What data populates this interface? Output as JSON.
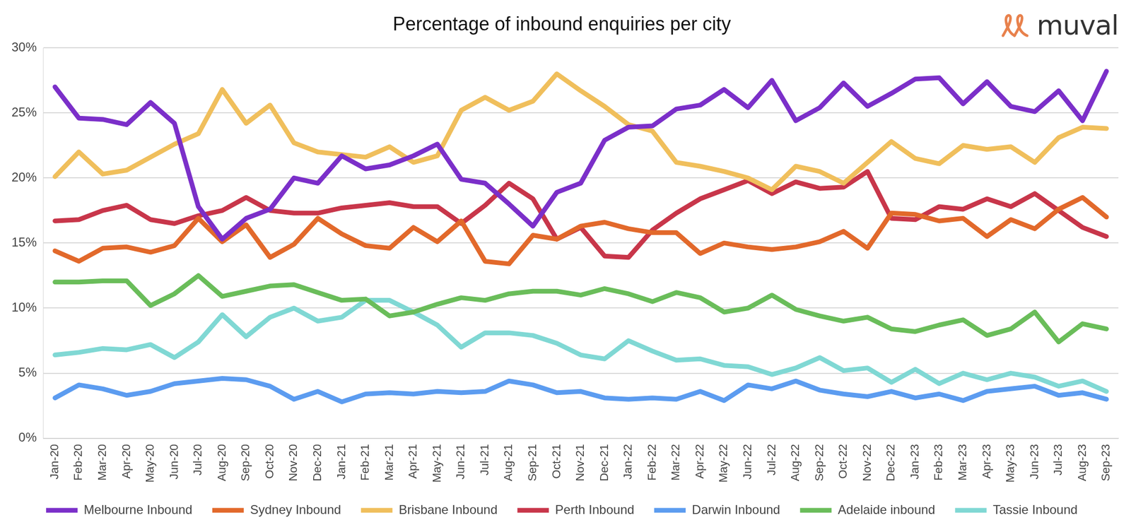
{
  "chart_data": {
    "type": "line",
    "title": "Percentage of inbound enquiries per city",
    "logo_text": "muval",
    "categories": [
      "Jan-20",
      "Feb-20",
      "Mar-20",
      "Apr-20",
      "May-20",
      "Jun-20",
      "Jul-20",
      "Aug-20",
      "Sep-20",
      "Oct-20",
      "Nov-20",
      "Dec-20",
      "Jan-21",
      "Feb-21",
      "Mar-21",
      "Apr-21",
      "May-21",
      "Jun-21",
      "Jul-21",
      "Aug-21",
      "Sep-21",
      "Oct-21",
      "Nov-21",
      "Dec-21",
      "Jan-22",
      "Feb-22",
      "Mar-22",
      "Apr-22",
      "May-22",
      "Jun-22",
      "Jul-22",
      "Aug-22",
      "Sep-22",
      "Oct-22",
      "Nov-22",
      "Dec-22",
      "Jan-23",
      "Feb-23",
      "Mar-23",
      "Apr-23",
      "May-23",
      "Jun-23",
      "Jul-23",
      "Aug-23",
      "Sep-23"
    ],
    "series": [
      {
        "name": "Melbourne Inbound",
        "color": "#7b2fc9",
        "values": [
          27.0,
          24.6,
          24.5,
          24.1,
          25.8,
          24.2,
          17.8,
          15.3,
          16.9,
          17.6,
          20.0,
          19.6,
          21.7,
          20.7,
          21.0,
          21.7,
          22.6,
          19.9,
          19.6,
          18.0,
          16.3,
          18.9,
          19.6,
          22.9,
          23.9,
          24.0,
          25.3,
          25.6,
          26.8,
          25.4,
          27.5,
          24.4,
          25.4,
          27.3,
          25.5,
          26.5,
          27.6,
          27.7,
          25.7,
          27.4,
          25.5,
          25.1,
          26.7,
          24.4,
          28.2
        ]
      },
      {
        "name": "Sydney Inbound",
        "color": "#e2692b",
        "values": [
          14.4,
          13.6,
          14.6,
          14.7,
          14.3,
          14.8,
          16.9,
          15.1,
          16.4,
          13.9,
          14.9,
          16.9,
          15.7,
          14.8,
          14.6,
          16.2,
          15.1,
          16.7,
          13.6,
          13.4,
          15.6,
          15.3,
          16.3,
          16.6,
          16.1,
          15.8,
          15.8,
          14.2,
          15.0,
          14.7,
          14.5,
          14.7,
          15.1,
          15.9,
          14.6,
          17.3,
          17.2,
          16.7,
          16.9,
          15.5,
          16.8,
          16.1,
          17.6,
          18.5,
          17.0
        ]
      },
      {
        "name": "Brisbane Inbound",
        "color": "#f0bf5c",
        "values": [
          20.1,
          22.0,
          20.3,
          20.6,
          21.6,
          22.6,
          23.4,
          26.8,
          24.2,
          25.6,
          22.7,
          22.0,
          21.8,
          21.6,
          22.4,
          21.2,
          21.7,
          25.2,
          26.2,
          25.2,
          25.9,
          28.0,
          26.7,
          25.5,
          24.1,
          23.6,
          21.2,
          20.9,
          20.5,
          20.0,
          19.1,
          20.9,
          20.5,
          19.6,
          21.2,
          22.8,
          21.5,
          21.1,
          22.5,
          22.2,
          22.4,
          21.2,
          23.1,
          23.9,
          23.8
        ]
      },
      {
        "name": "Perth Inbound",
        "color": "#c8364a",
        "values": [
          16.7,
          16.8,
          17.5,
          17.9,
          16.8,
          16.5,
          17.1,
          17.5,
          18.5,
          17.5,
          17.3,
          17.3,
          17.7,
          17.9,
          18.1,
          17.8,
          17.8,
          16.5,
          17.9,
          19.6,
          18.4,
          15.3,
          16.2,
          14.0,
          13.9,
          16.0,
          17.3,
          18.4,
          19.1,
          19.8,
          18.8,
          19.7,
          19.2,
          19.3,
          20.5,
          16.9,
          16.8,
          17.8,
          17.6,
          18.4,
          17.8,
          18.8,
          17.5,
          16.2,
          15.5
        ]
      },
      {
        "name": "Darwin Inbound",
        "color": "#5c9cf0",
        "values": [
          3.1,
          4.1,
          3.8,
          3.3,
          3.6,
          4.2,
          4.4,
          4.6,
          4.5,
          4.0,
          3.0,
          3.6,
          2.8,
          3.4,
          3.5,
          3.4,
          3.6,
          3.5,
          3.6,
          4.4,
          4.1,
          3.5,
          3.6,
          3.1,
          3.0,
          3.1,
          3.0,
          3.6,
          2.9,
          4.1,
          3.8,
          4.4,
          3.7,
          3.4,
          3.2,
          3.6,
          3.1,
          3.4,
          2.9,
          3.6,
          3.8,
          4.0,
          3.3,
          3.5,
          3.0
        ]
      },
      {
        "name": "Adelaide inbound",
        "color": "#6abd5a",
        "values": [
          12.0,
          12.0,
          12.1,
          12.1,
          10.2,
          11.1,
          12.5,
          10.9,
          11.3,
          11.7,
          11.8,
          11.2,
          10.6,
          10.7,
          9.4,
          9.7,
          10.3,
          10.8,
          10.6,
          11.1,
          11.3,
          11.3,
          11.0,
          11.5,
          11.1,
          10.5,
          11.2,
          10.8,
          9.7,
          10.0,
          11.0,
          9.9,
          9.4,
          9.0,
          9.3,
          8.4,
          8.2,
          8.7,
          9.1,
          7.9,
          8.4,
          9.7,
          7.4,
          8.8,
          8.4
        ]
      },
      {
        "name": "Tassie Inbound",
        "color": "#80d8d4",
        "values": [
          6.4,
          6.6,
          6.9,
          6.8,
          7.2,
          6.2,
          7.4,
          9.5,
          7.8,
          9.3,
          10.0,
          9.0,
          9.3,
          10.6,
          10.6,
          9.7,
          8.7,
          7.0,
          8.1,
          8.1,
          7.9,
          7.3,
          6.4,
          6.1,
          7.5,
          6.7,
          6.0,
          6.1,
          5.6,
          5.5,
          4.9,
          5.4,
          6.2,
          5.2,
          5.4,
          4.3,
          5.3,
          4.2,
          5.0,
          4.5,
          5.0,
          4.7,
          4.0,
          4.4,
          3.6
        ]
      }
    ],
    "ylim": [
      0,
      30
    ],
    "yticks": [
      {
        "value": 0,
        "label": "0%"
      },
      {
        "value": 5,
        "label": "5%"
      },
      {
        "value": 10,
        "label": "10%"
      },
      {
        "value": 15,
        "label": "15%"
      },
      {
        "value": 20,
        "label": "20%"
      },
      {
        "value": 25,
        "label": "25%"
      },
      {
        "value": 30,
        "label": "30%"
      }
    ],
    "grid": true,
    "legend": "bottom"
  }
}
